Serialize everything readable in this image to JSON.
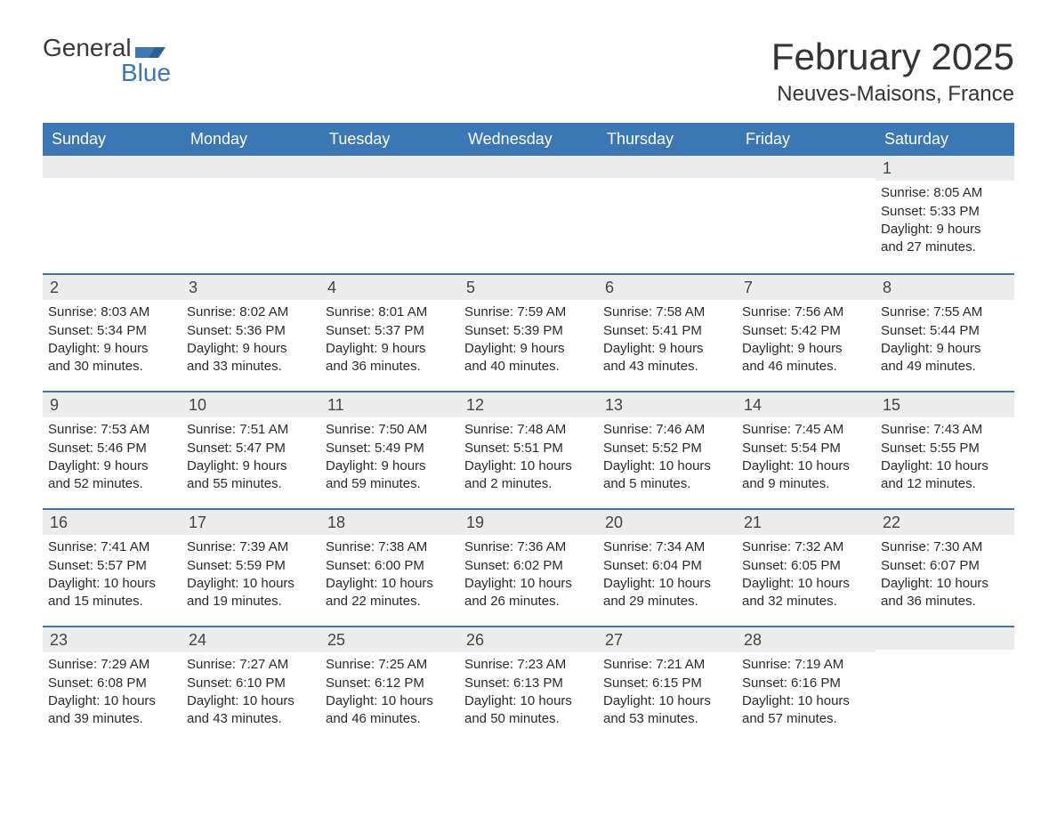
{
  "brand": {
    "word1": "General",
    "word2": "Blue",
    "color_accent": "#3b76b5",
    "color_text": "#3a3a3a"
  },
  "title": "February 2025",
  "location": "Neuves-Maisons, France",
  "colors": {
    "header_bg": "#3b76b5",
    "header_text": "#ffffff",
    "daybar_bg": "#ececec",
    "text": "#2b2b2b",
    "rule": "#3b76b5",
    "page_bg": "#ffffff"
  },
  "day_names": [
    "Sunday",
    "Monday",
    "Tuesday",
    "Wednesday",
    "Thursday",
    "Friday",
    "Saturday"
  ],
  "weeks": [
    [
      {
        "n": "",
        "sr": "",
        "ss": "",
        "d1": "",
        "d2": ""
      },
      {
        "n": "",
        "sr": "",
        "ss": "",
        "d1": "",
        "d2": ""
      },
      {
        "n": "",
        "sr": "",
        "ss": "",
        "d1": "",
        "d2": ""
      },
      {
        "n": "",
        "sr": "",
        "ss": "",
        "d1": "",
        "d2": ""
      },
      {
        "n": "",
        "sr": "",
        "ss": "",
        "d1": "",
        "d2": ""
      },
      {
        "n": "",
        "sr": "",
        "ss": "",
        "d1": "",
        "d2": ""
      },
      {
        "n": "1",
        "sr": "Sunrise: 8:05 AM",
        "ss": "Sunset: 5:33 PM",
        "d1": "Daylight: 9 hours",
        "d2": "and 27 minutes."
      }
    ],
    [
      {
        "n": "2",
        "sr": "Sunrise: 8:03 AM",
        "ss": "Sunset: 5:34 PM",
        "d1": "Daylight: 9 hours",
        "d2": "and 30 minutes."
      },
      {
        "n": "3",
        "sr": "Sunrise: 8:02 AM",
        "ss": "Sunset: 5:36 PM",
        "d1": "Daylight: 9 hours",
        "d2": "and 33 minutes."
      },
      {
        "n": "4",
        "sr": "Sunrise: 8:01 AM",
        "ss": "Sunset: 5:37 PM",
        "d1": "Daylight: 9 hours",
        "d2": "and 36 minutes."
      },
      {
        "n": "5",
        "sr": "Sunrise: 7:59 AM",
        "ss": "Sunset: 5:39 PM",
        "d1": "Daylight: 9 hours",
        "d2": "and 40 minutes."
      },
      {
        "n": "6",
        "sr": "Sunrise: 7:58 AM",
        "ss": "Sunset: 5:41 PM",
        "d1": "Daylight: 9 hours",
        "d2": "and 43 minutes."
      },
      {
        "n": "7",
        "sr": "Sunrise: 7:56 AM",
        "ss": "Sunset: 5:42 PM",
        "d1": "Daylight: 9 hours",
        "d2": "and 46 minutes."
      },
      {
        "n": "8",
        "sr": "Sunrise: 7:55 AM",
        "ss": "Sunset: 5:44 PM",
        "d1": "Daylight: 9 hours",
        "d2": "and 49 minutes."
      }
    ],
    [
      {
        "n": "9",
        "sr": "Sunrise: 7:53 AM",
        "ss": "Sunset: 5:46 PM",
        "d1": "Daylight: 9 hours",
        "d2": "and 52 minutes."
      },
      {
        "n": "10",
        "sr": "Sunrise: 7:51 AM",
        "ss": "Sunset: 5:47 PM",
        "d1": "Daylight: 9 hours",
        "d2": "and 55 minutes."
      },
      {
        "n": "11",
        "sr": "Sunrise: 7:50 AM",
        "ss": "Sunset: 5:49 PM",
        "d1": "Daylight: 9 hours",
        "d2": "and 59 minutes."
      },
      {
        "n": "12",
        "sr": "Sunrise: 7:48 AM",
        "ss": "Sunset: 5:51 PM",
        "d1": "Daylight: 10 hours",
        "d2": "and 2 minutes."
      },
      {
        "n": "13",
        "sr": "Sunrise: 7:46 AM",
        "ss": "Sunset: 5:52 PM",
        "d1": "Daylight: 10 hours",
        "d2": "and 5 minutes."
      },
      {
        "n": "14",
        "sr": "Sunrise: 7:45 AM",
        "ss": "Sunset: 5:54 PM",
        "d1": "Daylight: 10 hours",
        "d2": "and 9 minutes."
      },
      {
        "n": "15",
        "sr": "Sunrise: 7:43 AM",
        "ss": "Sunset: 5:55 PM",
        "d1": "Daylight: 10 hours",
        "d2": "and 12 minutes."
      }
    ],
    [
      {
        "n": "16",
        "sr": "Sunrise: 7:41 AM",
        "ss": "Sunset: 5:57 PM",
        "d1": "Daylight: 10 hours",
        "d2": "and 15 minutes."
      },
      {
        "n": "17",
        "sr": "Sunrise: 7:39 AM",
        "ss": "Sunset: 5:59 PM",
        "d1": "Daylight: 10 hours",
        "d2": "and 19 minutes."
      },
      {
        "n": "18",
        "sr": "Sunrise: 7:38 AM",
        "ss": "Sunset: 6:00 PM",
        "d1": "Daylight: 10 hours",
        "d2": "and 22 minutes."
      },
      {
        "n": "19",
        "sr": "Sunrise: 7:36 AM",
        "ss": "Sunset: 6:02 PM",
        "d1": "Daylight: 10 hours",
        "d2": "and 26 minutes."
      },
      {
        "n": "20",
        "sr": "Sunrise: 7:34 AM",
        "ss": "Sunset: 6:04 PM",
        "d1": "Daylight: 10 hours",
        "d2": "and 29 minutes."
      },
      {
        "n": "21",
        "sr": "Sunrise: 7:32 AM",
        "ss": "Sunset: 6:05 PM",
        "d1": "Daylight: 10 hours",
        "d2": "and 32 minutes."
      },
      {
        "n": "22",
        "sr": "Sunrise: 7:30 AM",
        "ss": "Sunset: 6:07 PM",
        "d1": "Daylight: 10 hours",
        "d2": "and 36 minutes."
      }
    ],
    [
      {
        "n": "23",
        "sr": "Sunrise: 7:29 AM",
        "ss": "Sunset: 6:08 PM",
        "d1": "Daylight: 10 hours",
        "d2": "and 39 minutes."
      },
      {
        "n": "24",
        "sr": "Sunrise: 7:27 AM",
        "ss": "Sunset: 6:10 PM",
        "d1": "Daylight: 10 hours",
        "d2": "and 43 minutes."
      },
      {
        "n": "25",
        "sr": "Sunrise: 7:25 AM",
        "ss": "Sunset: 6:12 PM",
        "d1": "Daylight: 10 hours",
        "d2": "and 46 minutes."
      },
      {
        "n": "26",
        "sr": "Sunrise: 7:23 AM",
        "ss": "Sunset: 6:13 PM",
        "d1": "Daylight: 10 hours",
        "d2": "and 50 minutes."
      },
      {
        "n": "27",
        "sr": "Sunrise: 7:21 AM",
        "ss": "Sunset: 6:15 PM",
        "d1": "Daylight: 10 hours",
        "d2": "and 53 minutes."
      },
      {
        "n": "28",
        "sr": "Sunrise: 7:19 AM",
        "ss": "Sunset: 6:16 PM",
        "d1": "Daylight: 10 hours",
        "d2": "and 57 minutes."
      },
      {
        "n": "",
        "sr": "",
        "ss": "",
        "d1": "",
        "d2": ""
      }
    ]
  ]
}
